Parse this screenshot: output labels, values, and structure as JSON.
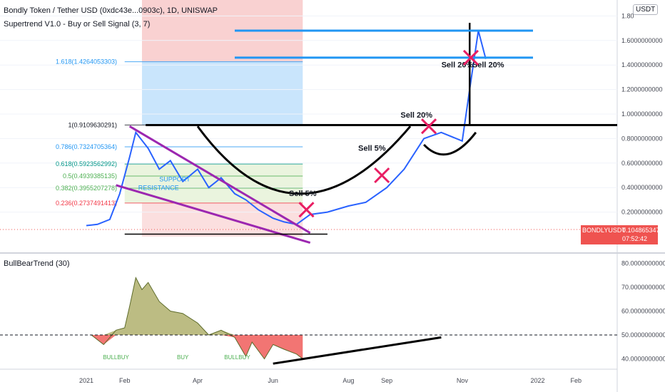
{
  "header": {
    "title": "Bondly Token / Tether USD (0xdc43e...0903c), 1D, UNISWAP",
    "indicator_main": "Supertrend V1.0 - Buy or Sell Signal (3, 7)",
    "indicator_sub": "BullBearTrend (30)",
    "currency": "USDT"
  },
  "price_tag": {
    "symbol": "BONDLYUSDT",
    "value": "0.1048653473",
    "countdown": "07:52:42",
    "color": "#ef5350"
  },
  "colors": {
    "price": "#2962ff",
    "trend": "#000000",
    "wedge": "#9c27b0",
    "tp_lines": "#2196f3",
    "sell_x": "#e91e63",
    "bull_fill": "#a5a55a",
    "bear_fill": "#ef5350"
  },
  "chart_data": [
    {
      "type": "line",
      "name": "price",
      "x": [
        "2021-01-01",
        "2021-01-10",
        "2021-01-20",
        "2021-01-28",
        "2021-02-05",
        "2021-02-10",
        "2021-02-20",
        "2021-03-01",
        "2021-03-10",
        "2021-03-20",
        "2021-04-01",
        "2021-04-10",
        "2021-04-20",
        "2021-05-01",
        "2021-05-10",
        "2021-05-20",
        "2021-06-01",
        "2021-06-10",
        "2021-06-20",
        "2021-07-01",
        "2021-07-15",
        "2021-08-01",
        "2021-08-15",
        "2021-09-01",
        "2021-09-15",
        "2021-10-01",
        "2021-10-15",
        "2021-11-01",
        "2021-11-07",
        "2021-11-14",
        "2021-11-20"
      ],
      "y": [
        0.09,
        0.1,
        0.14,
        0.35,
        0.65,
        0.85,
        0.72,
        0.55,
        0.62,
        0.45,
        0.55,
        0.4,
        0.48,
        0.35,
        0.3,
        0.22,
        0.15,
        0.12,
        0.1,
        0.18,
        0.2,
        0.25,
        0.28,
        0.4,
        0.55,
        0.8,
        0.85,
        0.78,
        1.2,
        1.68,
        1.45
      ],
      "fib_levels": [
        {
          "ratio": "1.618(1.4264053303)",
          "value": 1.4264053303,
          "color": "#2196f3"
        },
        {
          "ratio": "1(0.9109630291)",
          "value": 0.9109630291,
          "color": "#131722"
        },
        {
          "ratio": "0.786(0.7324705364)",
          "value": 0.7324705364,
          "color": "#2196f3"
        },
        {
          "ratio": "0.618(0.5923562992)",
          "value": 0.5923562992,
          "color": "#009688"
        },
        {
          "ratio": "0.5(0.4939385135)",
          "value": 0.4939385135,
          "color": "#4caf50"
        },
        {
          "ratio": "0.382(0.3955207278)",
          "value": 0.3955207278,
          "color": "#4caf50"
        },
        {
          "ratio": "0.236(0.2737491413)",
          "value": 0.2737491413,
          "color": "#f23645"
        }
      ],
      "take_profit_levels": [
        1.68,
        1.46
      ],
      "y_ticks": [
        "1.80",
        "1.6000000000",
        "1.4000000000",
        "1.2000000000",
        "1.0000000000",
        "0.8000000000",
        "0.6000000000",
        "0.4000000000",
        "0.2000000000"
      ],
      "x_ticks": [
        "2021",
        "Feb",
        "Apr",
        "Jun",
        "Aug",
        "Sep",
        "Nov",
        "2022",
        "Feb"
      ],
      "annotations": [
        {
          "text": "Sell 5%",
          "x": "2021-06-25",
          "y": 0.33
        },
        {
          "text": "Sell 5%",
          "x": "2021-08-20",
          "y": 0.7
        },
        {
          "text": "Sell 20%",
          "x": "2021-09-25",
          "y": 0.97
        },
        {
          "text": "Sell 20%",
          "x": "2021-10-28",
          "y": 1.38
        },
        {
          "text": "Sell 20%",
          "x": "2021-11-22",
          "y": 1.38
        }
      ],
      "overlay_labels": [
        "SUPPORT",
        "RESISTANCE"
      ]
    },
    {
      "type": "area",
      "name": "BullBearTrend (30)",
      "x": [
        "2021-01-05",
        "2021-01-15",
        "2021-01-25",
        "2021-02-01",
        "2021-02-05",
        "2021-02-10",
        "2021-02-15",
        "2021-02-20",
        "2021-03-01",
        "2021-03-10",
        "2021-03-20",
        "2021-04-01",
        "2021-04-10",
        "2021-04-20",
        "2021-05-01",
        "2021-05-10",
        "2021-05-15",
        "2021-05-25",
        "2021-06-01",
        "2021-06-10",
        "2021-06-20",
        "2021-06-25"
      ],
      "y": [
        50,
        46,
        52,
        53,
        62,
        74,
        69,
        72,
        64,
        60,
        59,
        55,
        50,
        52,
        49,
        41,
        47,
        40,
        46,
        44,
        42,
        40
      ],
      "baseline": 50,
      "y_ticks": [
        "80.0000000000",
        "70.0000000000",
        "60.0000000000",
        "50.0000000000",
        "40.0000000000"
      ],
      "signals": [
        {
          "text": "BULLBUY",
          "x": "2021-01-25"
        },
        {
          "text": "BUY",
          "x": "2021-03-20"
        },
        {
          "text": "BULLBUY",
          "x": "2021-05-03"
        }
      ],
      "trendline": {
        "x": [
          "2021-06-01",
          "2021-10-15"
        ],
        "y": [
          38,
          49
        ]
      }
    }
  ]
}
